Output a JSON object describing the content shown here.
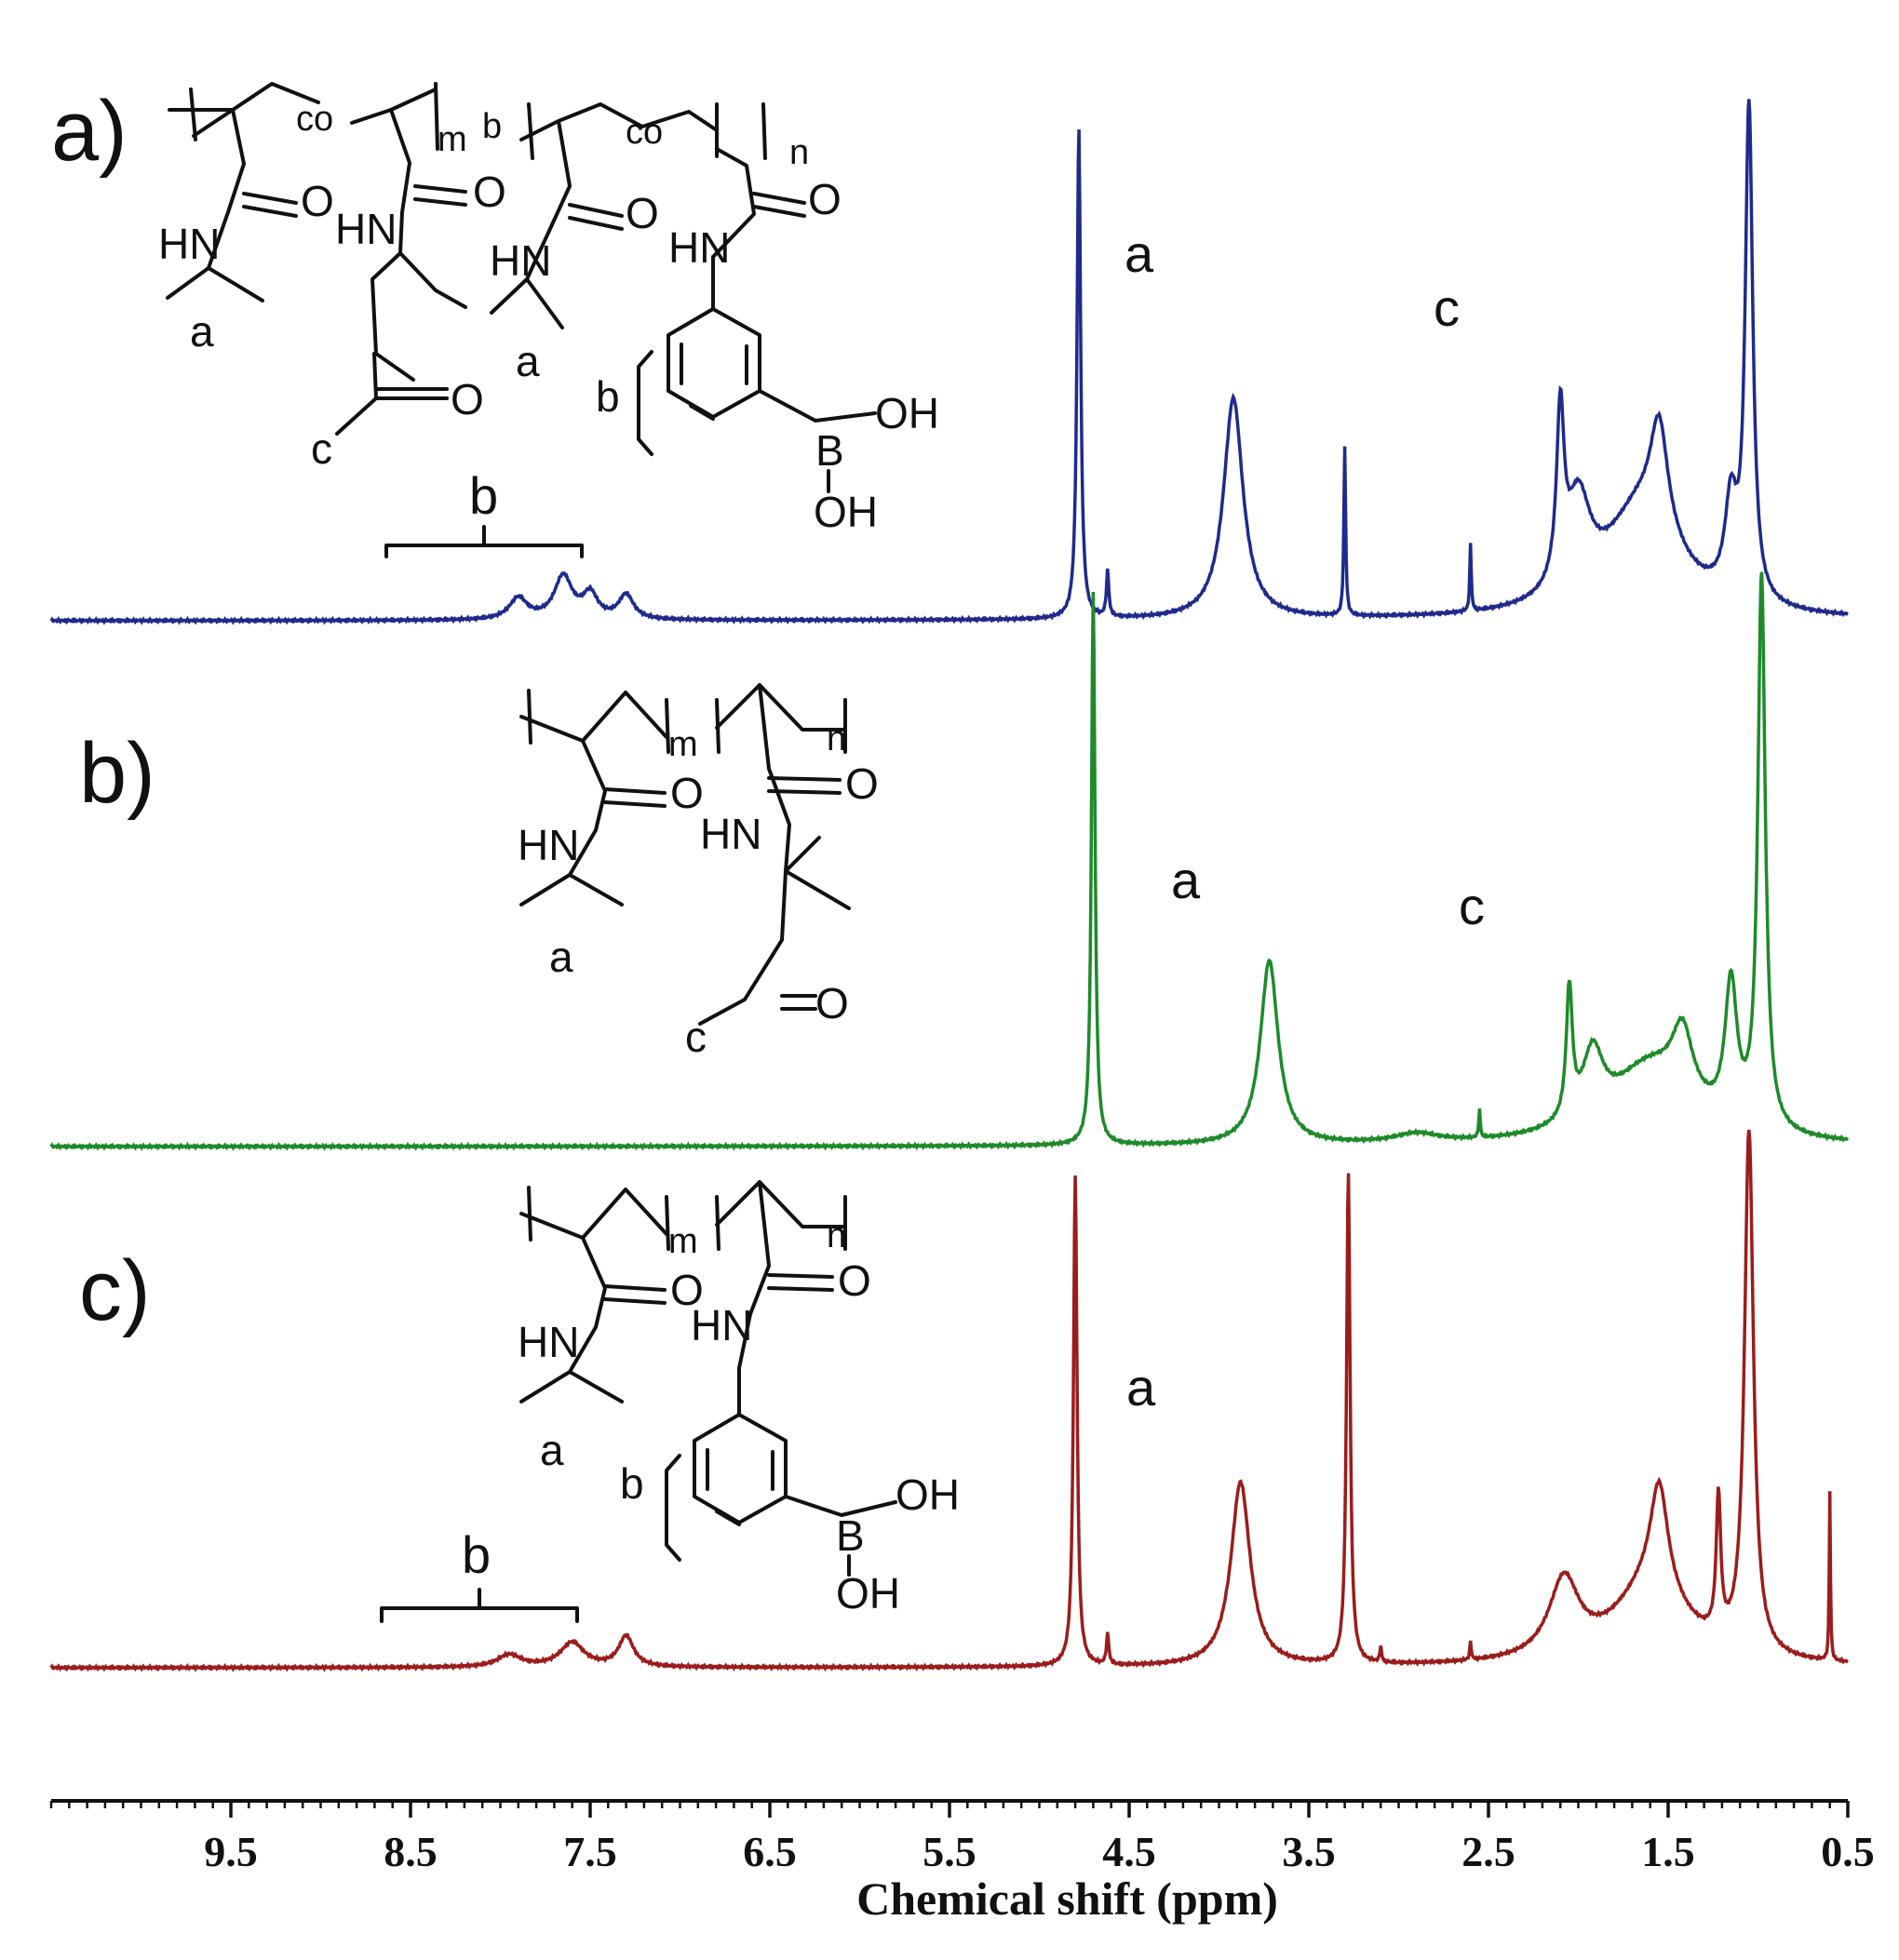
{
  "chart_data": {
    "type": "line",
    "xlabel": "Chemical shift (ppm)",
    "xlim": [
      10.5,
      0.5
    ],
    "x_reversed": true,
    "xticks": [
      9.5,
      8.5,
      7.5,
      6.5,
      5.5,
      4.5,
      3.5,
      2.5,
      1.5,
      0.5
    ],
    "xtick_labels": [
      "9.5",
      "8.5",
      "7.5",
      "6.5",
      "5.5",
      "4.5",
      "3.5",
      "2.5",
      "1.5",
      "0.5"
    ],
    "grid": false,
    "series": [
      {
        "panel": "a)",
        "color": "#1f2a8c",
        "peak_labels": [
          "a",
          "c",
          "b"
        ],
        "peaks": [
          {
            "x": 7.9,
            "h": 0.07,
            "w": 0.06
          },
          {
            "x": 7.65,
            "h": 0.14,
            "w": 0.06
          },
          {
            "x": 7.5,
            "h": 0.08,
            "w": 0.05
          },
          {
            "x": 7.3,
            "h": 0.08,
            "w": 0.05
          },
          {
            "x": 4.78,
            "h": 1.6,
            "w": 0.012
          },
          {
            "x": 4.62,
            "h": 0.15,
            "w": 0.008
          },
          {
            "x": 3.92,
            "h": 0.72,
            "w": 0.065
          },
          {
            "x": 3.3,
            "h": 0.55,
            "w": 0.006
          },
          {
            "x": 2.6,
            "h": 0.22,
            "w": 0.005
          },
          {
            "x": 2.1,
            "h": 0.55,
            "w": 0.025
          },
          {
            "x": 2.0,
            "h": 0.3,
            "w": 0.08
          },
          {
            "x": 1.65,
            "h": 0.35,
            "w": 0.25
          },
          {
            "x": 1.55,
            "h": 0.35,
            "w": 0.06
          },
          {
            "x": 1.15,
            "h": 0.3,
            "w": 0.04
          },
          {
            "x": 1.05,
            "h": 1.6,
            "w": 0.025
          }
        ]
      },
      {
        "panel": "b)",
        "color": "#1e8a2a",
        "peak_labels": [
          "a",
          "c"
        ],
        "peaks": [
          {
            "x": 4.7,
            "h": 1.8,
            "w": 0.012
          },
          {
            "x": 3.72,
            "h": 0.6,
            "w": 0.06
          },
          {
            "x": 2.9,
            "h": 0.03,
            "w": 0.15
          },
          {
            "x": 2.55,
            "h": 0.09,
            "w": 0.005
          },
          {
            "x": 2.05,
            "h": 0.42,
            "w": 0.02
          },
          {
            "x": 1.92,
            "h": 0.22,
            "w": 0.07
          },
          {
            "x": 1.6,
            "h": 0.25,
            "w": 0.28
          },
          {
            "x": 1.42,
            "h": 0.22,
            "w": 0.07
          },
          {
            "x": 1.15,
            "h": 0.45,
            "w": 0.04
          },
          {
            "x": 0.98,
            "h": 1.8,
            "w": 0.025
          }
        ]
      },
      {
        "panel": "c)",
        "color": "#9b1c1c",
        "peak_labels": [
          "a",
          "b"
        ],
        "peaks": [
          {
            "x": 7.95,
            "h": 0.04,
            "w": 0.08
          },
          {
            "x": 7.6,
            "h": 0.08,
            "w": 0.08
          },
          {
            "x": 7.3,
            "h": 0.1,
            "w": 0.05
          },
          {
            "x": 4.8,
            "h": 1.6,
            "w": 0.012
          },
          {
            "x": 4.62,
            "h": 0.1,
            "w": 0.008
          },
          {
            "x": 3.88,
            "h": 0.6,
            "w": 0.065
          },
          {
            "x": 3.28,
            "h": 1.6,
            "w": 0.012
          },
          {
            "x": 3.1,
            "h": 0.05,
            "w": 0.006
          },
          {
            "x": 2.6,
            "h": 0.06,
            "w": 0.005
          },
          {
            "x": 2.08,
            "h": 0.25,
            "w": 0.1
          },
          {
            "x": 1.6,
            "h": 0.25,
            "w": 0.25
          },
          {
            "x": 1.55,
            "h": 0.35,
            "w": 0.06
          },
          {
            "x": 1.22,
            "h": 0.45,
            "w": 0.015
          },
          {
            "x": 1.05,
            "h": 1.7,
            "w": 0.03
          },
          {
            "x": 0.6,
            "h": 0.55,
            "w": 0.004
          }
        ]
      }
    ]
  },
  "panels": [
    {
      "label": "a)",
      "structure": {
        "co1": "co",
        "m": "m",
        "b_sub": "b",
        "co2": "co",
        "n": "n",
        "o1": "O",
        "o2": "O",
        "o3": "O",
        "o4": "O",
        "hn1": "HN",
        "hn2": "HN",
        "hn3": "HN",
        "hn4": "HN",
        "a1": "a",
        "a2": "a",
        "b2": "b",
        "c": "c",
        "o_keto": "O",
        "oh1": "OH",
        "boron": "B",
        "oh2": "OH"
      },
      "peak_text": {
        "a": "a",
        "c": "c",
        "b": "b"
      }
    },
    {
      "label": "b)",
      "structure": {
        "m": "m",
        "n": "n",
        "o1": "O",
        "o2": "O",
        "hn1": "HN",
        "hn2": "HN",
        "a": "a",
        "c": "c",
        "o_keto": "O"
      },
      "peak_text": {
        "a": "a",
        "c": "c"
      }
    },
    {
      "label": "c)",
      "structure": {
        "m": "m",
        "n": "n",
        "o1": "O",
        "o2": "O",
        "hn1": "HN",
        "hn2": "HN",
        "a": "a",
        "b": "b",
        "oh1": "OH",
        "boron": "B",
        "oh2": "OH"
      },
      "peak_text": {
        "a": "a",
        "b": "b"
      }
    }
  ],
  "colors": {
    "blue": "#1f2a8c",
    "green": "#1e8a2a",
    "red": "#9b1c1c",
    "ink": "#111111"
  }
}
